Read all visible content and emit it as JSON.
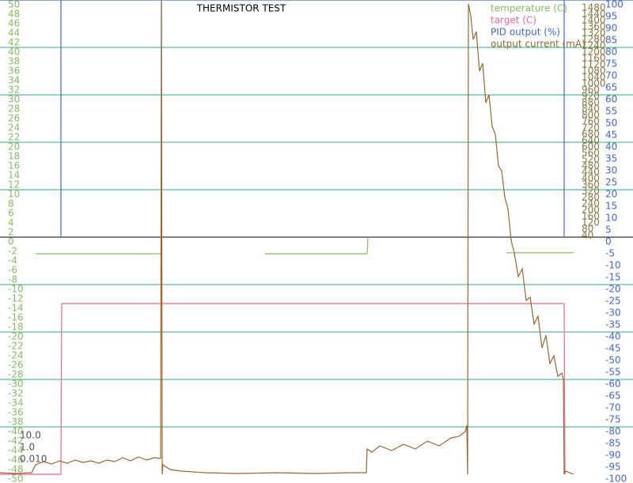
{
  "chart_data": {
    "type": "line",
    "title": "THERMISTOR TEST",
    "xlim": [
      0,
      800
    ],
    "ylim": [
      -50,
      50
    ],
    "yticks": [
      50,
      48,
      46,
      44,
      42,
      40,
      38,
      36,
      34,
      32,
      30,
      28,
      26,
      24,
      22,
      20,
      18,
      16,
      14,
      12,
      10,
      8,
      6,
      4,
      2,
      0,
      -2,
      -4,
      -6,
      -8,
      -10,
      -12,
      -14,
      -16,
      -18,
      -20,
      -22,
      -24,
      -26,
      -28,
      -30,
      -32,
      -34,
      -36,
      -38,
      -40,
      -42,
      -44,
      -46,
      -48,
      -50
    ],
    "y2lim": [
      -100,
      100
    ],
    "y2ticks": [
      100,
      95,
      90,
      85,
      80,
      75,
      70,
      65,
      60,
      55,
      50,
      45,
      40,
      35,
      30,
      25,
      20,
      15,
      10,
      5,
      0,
      -5,
      -10,
      -15,
      -20,
      -25,
      -30,
      -35,
      -40,
      -45,
      -50,
      -55,
      -60,
      -65,
      -70,
      -75,
      -80,
      -85,
      -90,
      -95,
      -100
    ],
    "y3lim": [
      -1500,
      1500
    ],
    "y3ticks": [
      1480,
      1440,
      1400,
      1360,
      1320,
      1280,
      1240,
      1200,
      1160,
      1120,
      1080,
      1040,
      1000,
      960,
      920,
      880,
      840,
      800,
      760,
      720,
      680,
      640,
      600,
      560,
      520,
      480,
      440,
      400,
      360,
      320,
      280,
      240,
      200,
      160,
      120,
      80,
      40
    ],
    "grid": true,
    "legend": "top-right",
    "axis_colors": {
      "y": "#88bb66",
      "y2": "#4466cc",
      "y3": "#887744"
    },
    "side_labels": [
      "10.0",
      "1.0",
      "0.010"
    ],
    "series": [
      {
        "name": "temperature (C)",
        "color": "#88bb66",
        "axis": "y",
        "x": [
          45,
          205,
          206,
          335,
          464,
          465,
          466,
          640,
          725
        ],
        "values": [
          -3.5,
          -3.5,
          null,
          -3.5,
          -3.5,
          0,
          null,
          -3.3,
          -3.3
        ]
      },
      {
        "name": "target (C)",
        "color": "#ee6699",
        "axis": "y",
        "x": [
          0,
          77,
          78,
          713,
          714
        ],
        "values": [
          -50,
          -50,
          -14,
          -14,
          -50
        ]
      },
      {
        "name": "PID output (%)",
        "color": "#4466cc",
        "axis": "y2",
        "x": [
          0,
          77,
          77,
          77,
          204,
          204,
          204,
          713,
          713,
          713,
          800
        ],
        "values": [
          100,
          100,
          0,
          100,
          100,
          0,
          100,
          100,
          0,
          100,
          100
        ]
      },
      {
        "name": "output current (mA)",
        "color": "#996633",
        "axis": "y3",
        "x": [
          0,
          20,
          40,
          45,
          55,
          65,
          75,
          85,
          95,
          105,
          115,
          125,
          135,
          145,
          155,
          165,
          175,
          185,
          195,
          203,
          204,
          205,
          206,
          215,
          230,
          260,
          300,
          350,
          400,
          440,
          463,
          464,
          470,
          480,
          495,
          510,
          525,
          540,
          555,
          570,
          580,
          588,
          590,
          591,
          592,
          595,
          598,
          602,
          606,
          610,
          614,
          618,
          622,
          626,
          630,
          634,
          638,
          642,
          646,
          650,
          655,
          660,
          665,
          670,
          675,
          680,
          685,
          690,
          695,
          700,
          705,
          710,
          712,
          713,
          715,
          720,
          725
        ],
        "values": [
          -1490,
          -1495,
          -1490,
          -1440,
          -1420,
          -1435,
          -1415,
          -1430,
          -1410,
          -1425,
          -1415,
          -1430,
          -1410,
          -1420,
          -1395,
          -1415,
          -1390,
          -1410,
          -1395,
          -1400,
          1500,
          -1500,
          -1440,
          -1470,
          -1480,
          -1490,
          -1495,
          -1490,
          -1495,
          -1490,
          -1490,
          -1340,
          -1360,
          -1320,
          -1350,
          -1310,
          -1340,
          -1290,
          -1320,
          -1270,
          -1260,
          -1230,
          -1190,
          -1500,
          1475,
          1400,
          1250,
          1300,
          1050,
          1100,
          850,
          900,
          700,
          650,
          450,
          420,
          250,
          180,
          -20,
          -100,
          -250,
          -200,
          -400,
          -380,
          -550,
          -500,
          -700,
          -620,
          -800,
          -750,
          -880,
          -860,
          -900,
          -1500,
          -1480,
          -1490,
          -1500
        ]
      }
    ]
  }
}
